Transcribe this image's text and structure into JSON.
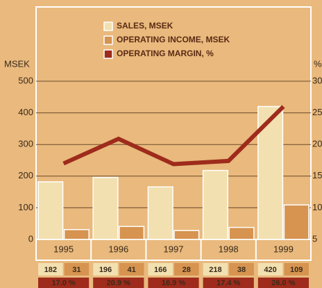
{
  "chart_data": {
    "type": "bar_line",
    "categories": [
      "1995",
      "1996",
      "1997",
      "1998",
      "1999"
    ],
    "series": [
      {
        "name": "SALES, MSEK",
        "color": "#f2e0b0",
        "values": [
          182,
          196,
          166,
          218,
          420
        ]
      },
      {
        "name": "OPERATING INCOME, MSEK",
        "color": "#d69450",
        "values": [
          31,
          41,
          28,
          38,
          109
        ]
      },
      {
        "name": "OPERATING MARGIN, %",
        "color": "#9e2b1b",
        "type": "line",
        "axis": "y2",
        "values": [
          17.0,
          20.9,
          16.9,
          17.4,
          26.0
        ],
        "value_labels": [
          "17.0 %",
          "20.9 %",
          "16.9 %",
          "17.4 %",
          "26.0 %"
        ]
      }
    ],
    "ylabel": "MSEK",
    "y2label": "%",
    "ylim": [
      0,
      500
    ],
    "yticks": [
      0,
      100,
      200,
      300,
      400,
      500
    ],
    "y2lim": [
      5,
      30
    ],
    "y2ticks": [
      5,
      10,
      15,
      20,
      25,
      30
    ],
    "grid": true
  }
}
